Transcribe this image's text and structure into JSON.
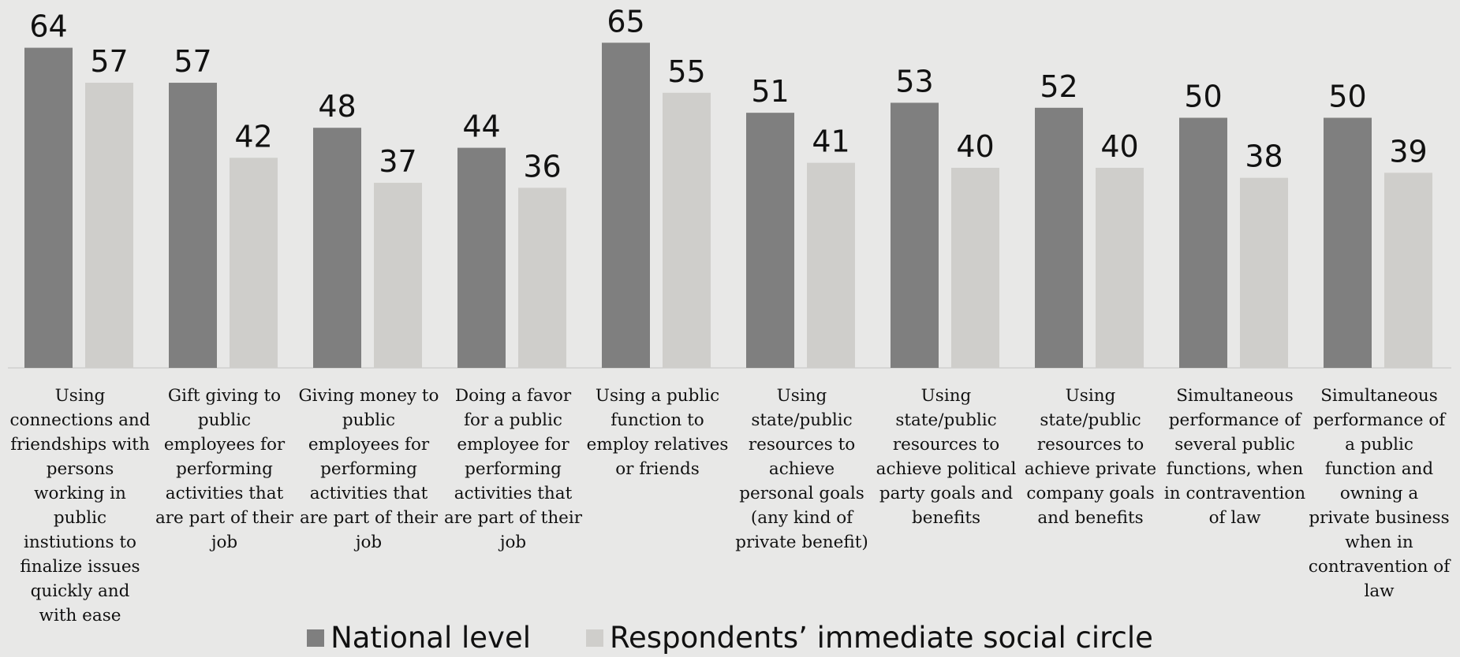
{
  "chart_data": {
    "type": "bar",
    "categories": [
      "Using connections and friendships with persons working in public instiutions to finalize issues quickly and with ease",
      "Gift giving to public employees for performing activities that are part of their job",
      "Giving money to public employees for performing activities that are part of their job",
      "Doing a favor for a public employee for performing activities that are part of their job",
      "Using a public function to employ relatives or friends",
      "Using state/public resources to achieve personal goals (any kind of private benefit)",
      "Using state/public resources to achieve political party goals and benefits",
      "Using state/public resources to achieve private company goals and benefits",
      "Simultaneous performance of several public functions, when in contravention of law",
      "Simultaneous performance of a public function and owning a private business when in contravention of law"
    ],
    "series": [
      {
        "name": "National level",
        "color": "#7f7f7f",
        "values": [
          64,
          57,
          48,
          44,
          65,
          51,
          53,
          52,
          50,
          50
        ]
      },
      {
        "name": "Respondents’ immediate social circle",
        "color": "#cfcecb",
        "values": [
          57,
          42,
          37,
          36,
          55,
          41,
          40,
          40,
          38,
          39
        ]
      }
    ],
    "ylim": [
      0,
      70
    ],
    "grid": false,
    "legend": "bottom-center",
    "data_labels": true
  }
}
